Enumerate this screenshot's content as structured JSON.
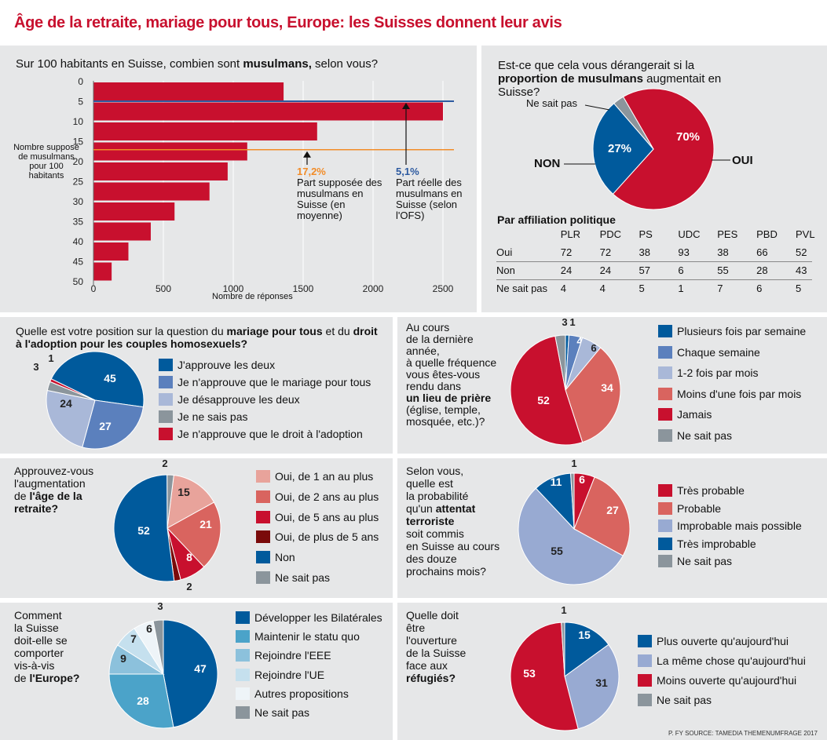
{
  "title": "Âge de la retraite, mariage pour tous, Europe: les Suisses donnent leur avis",
  "source": "P. FY SOURCE: TAMEDIA THEMENUMFRAGE 2017",
  "chart_data": [
    {
      "id": "muslims_estimate",
      "type": "bar",
      "orientation": "horizontal",
      "title_pre": "Sur 100 habitants en Suisse, combien sont ",
      "title_bold": "musulmans,",
      "title_post": " selon vous?",
      "categories": [
        "0",
        "5",
        "10",
        "15",
        "20",
        "25",
        "30",
        "35",
        "40",
        "45",
        "50"
      ],
      "values": [
        1360,
        2500,
        1600,
        1100,
        960,
        830,
        580,
        410,
        250,
        130,
        0
      ],
      "ylabel": "Nombre supposé de musulmans pour 100 habitants",
      "xlabel": "Nombre de réponses",
      "xlim": [
        0,
        2600
      ],
      "xticks": [
        "0",
        "500",
        "1000",
        "1500",
        "2000",
        "2500"
      ],
      "reference_lines": [
        {
          "value": 17.2,
          "label_value": "17,2%",
          "label": "Part supposée des musulmans en Suisse (en moyenne)",
          "color": "#f28c28"
        },
        {
          "value": 5.1,
          "label_value": "5,1%",
          "label": "Part réelle des musulmans en Suisse (selon l'OFS)",
          "color": "#2d5aa0"
        }
      ]
    },
    {
      "id": "muslims_increase",
      "type": "pie",
      "title_pre": "Est-ce que cela vous dérangerait si la ",
      "title_bold": "proportion de musulmans",
      "title_post": " augmentait en Suisse?",
      "slices": [
        {
          "label": "OUI",
          "value": 70,
          "display": "70%",
          "color": "#c8102e"
        },
        {
          "label": "NON",
          "value": 27,
          "display": "27%",
          "color": "#005a9c"
        },
        {
          "label": "Ne sait pas",
          "value": 3,
          "display": "",
          "color": "#8b959c"
        }
      ]
    },
    {
      "id": "political_affiliation",
      "type": "table",
      "title": "Par affiliation politique",
      "columns": [
        "",
        "PLR",
        "PDC",
        "PS",
        "UDC",
        "PES",
        "PBD",
        "PVL"
      ],
      "rows": [
        [
          "Oui",
          "72",
          "72",
          "38",
          "93",
          "38",
          "66",
          "52"
        ],
        [
          "Non",
          "24",
          "24",
          "57",
          "6",
          "55",
          "28",
          "43"
        ],
        [
          "Ne sait pas",
          "4",
          "4",
          "5",
          "1",
          "7",
          "6",
          "5"
        ]
      ]
    },
    {
      "id": "marriage",
      "type": "pie",
      "title_pre": "Quelle est votre position sur la question du ",
      "title_bold": "mariage pour tous",
      "title_mid": " et du ",
      "title_bold2": "droit à l'adoption pour les couples homosexuels?",
      "slices": [
        {
          "label": "J'approuve les deux",
          "value": 45,
          "color": "#005a9c"
        },
        {
          "label": "Je n'approuve que le mariage pour tous",
          "value": 27,
          "color": "#5b80bd"
        },
        {
          "label": "Je désapprouve les deux",
          "value": 24,
          "color": "#a9b8d8"
        },
        {
          "label": "Je ne sais pas",
          "value": 3,
          "color": "#8b959c"
        },
        {
          "label": "Je n'approuve que le droit à l'adoption",
          "value": 1,
          "color": "#c8102e"
        }
      ]
    },
    {
      "id": "prayer",
      "type": "pie",
      "title_parts": [
        "Au cours",
        "de la dernière",
        "année,",
        "à quelle fréquence",
        "vous êtes-vous",
        "rendu dans"
      ],
      "title_bold": "un lieu de prière",
      "title_tail": [
        "(église, temple,",
        "mosquée, etc.)?"
      ],
      "slices": [
        {
          "label": "Plusieurs fois par semaine",
          "value": 1,
          "color": "#005a9c"
        },
        {
          "label": "Chaque semaine",
          "value": 4,
          "color": "#5b80bd"
        },
        {
          "label": "1-2 fois par mois",
          "value": 6,
          "color": "#a9b8d8"
        },
        {
          "label": "Moins d'une fois par mois",
          "value": 34,
          "color": "#d9645f"
        },
        {
          "label": "Jamais",
          "value": 52,
          "color": "#c8102e"
        },
        {
          "label": "Ne sait pas",
          "value": 3,
          "color": "#8b959c"
        }
      ]
    },
    {
      "id": "retirement",
      "type": "pie",
      "title_parts": [
        "Approuvez-vous",
        "l'augmentation"
      ],
      "title_pre": "de ",
      "title_bold": "l'âge de la retraite?",
      "slices": [
        {
          "label": "Oui, de 1 an au plus",
          "value": 15,
          "color": "#e8a39b"
        },
        {
          "label": "Oui, de 2 ans au plus",
          "value": 21,
          "color": "#d9645f"
        },
        {
          "label": "Oui, de 5 ans au plus",
          "value": 8,
          "color": "#c8102e"
        },
        {
          "label": "Oui, de plus de 5 ans",
          "value": 2,
          "color": "#7a0a0a"
        },
        {
          "label": "Non",
          "value": 52,
          "color": "#005a9c"
        },
        {
          "label": "Ne sait pas",
          "value": 2,
          "color": "#8b959c"
        }
      ]
    },
    {
      "id": "terror",
      "type": "pie",
      "title_parts": [
        "Selon vous,",
        "quelle est",
        "la probabilité",
        "qu'un"
      ],
      "title_bold": "attentat terroriste",
      "title_tail": [
        "soit commis",
        "en Suisse au cours",
        "des douze",
        "prochains mois?"
      ],
      "slices": [
        {
          "label": "Très probable",
          "value": 6,
          "color": "#c8102e"
        },
        {
          "label": "Probable",
          "value": 27,
          "color": "#d9645f"
        },
        {
          "label": "Improbable mais possible",
          "value": 55,
          "color": "#98aad2"
        },
        {
          "label": "Très improbable",
          "value": 11,
          "color": "#005a9c"
        },
        {
          "label": "Ne sait pas",
          "value": 1,
          "color": "#8b959c"
        }
      ]
    },
    {
      "id": "europe",
      "type": "pie",
      "title_parts": [
        "Comment",
        "la Suisse",
        "doit-elle se",
        "comporter",
        "vis-à-vis"
      ],
      "title_pre": "de ",
      "title_bold": "l'Europe?",
      "slices": [
        {
          "label": "Développer les Bilatérales",
          "value": 47,
          "color": "#005a9c"
        },
        {
          "label": "Maintenir le statu quo",
          "value": 28,
          "color": "#4ba3c9"
        },
        {
          "label": "Rejoindre l'EEE",
          "value": 9,
          "color": "#8cc1dc"
        },
        {
          "label": "Rejoindre l'UE",
          "value": 7,
          "color": "#c5e0ee"
        },
        {
          "label": "Autres propositions",
          "value": 6,
          "color": "#eef4f8"
        },
        {
          "label": "Ne sait pas",
          "value": 3,
          "color": "#8b959c"
        }
      ]
    },
    {
      "id": "refugees",
      "type": "pie",
      "title_parts": [
        "Quelle doit",
        "être",
        "l'ouverture",
        "de la Suisse",
        "face aux"
      ],
      "title_bold": "réfugiés?",
      "slices": [
        {
          "label": "Plus ouverte qu'aujourd'hui",
          "value": 15,
          "color": "#005a9c"
        },
        {
          "label": "La même chose qu'aujourd'hui",
          "value": 31,
          "color": "#98aad2"
        },
        {
          "label": "Moins ouverte qu'aujourd'hui",
          "value": 53,
          "color": "#c8102e"
        },
        {
          "label": "Ne sait pas",
          "value": 1,
          "color": "#8b959c"
        }
      ]
    }
  ]
}
